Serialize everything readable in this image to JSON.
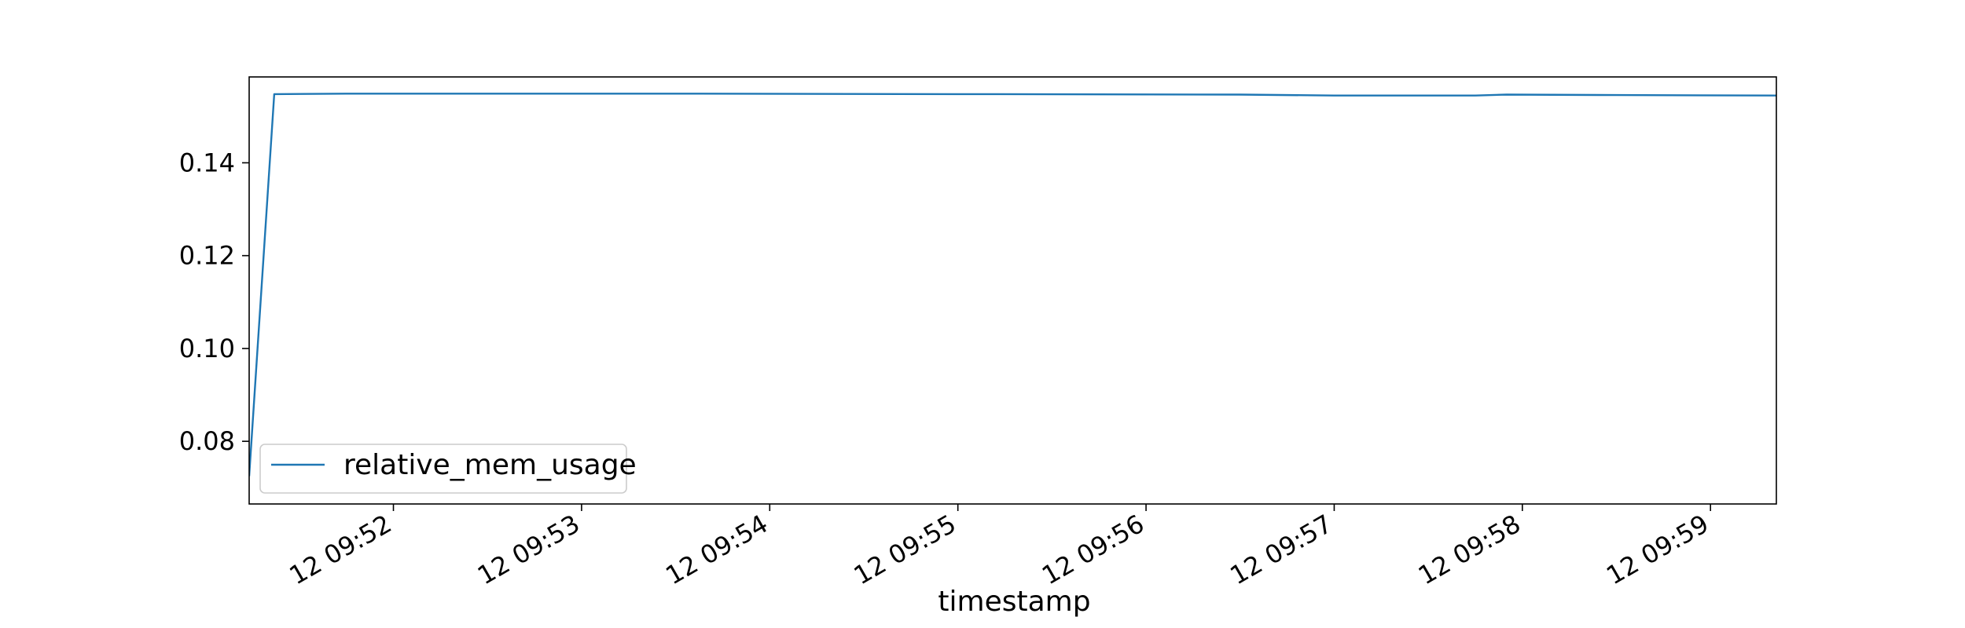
{
  "chart_data": {
    "type": "line",
    "title": "",
    "xlabel": "timestamp",
    "ylabel": "",
    "grid": false,
    "legend_position": "lower-left",
    "x_ticks": [
      {
        "time": "09:52:00",
        "label": "12 09:52"
      },
      {
        "time": "09:53:00",
        "label": "12 09:53"
      },
      {
        "time": "09:54:00",
        "label": "12 09:54"
      },
      {
        "time": "09:55:00",
        "label": "12 09:55"
      },
      {
        "time": "09:56:00",
        "label": "12 09:56"
      },
      {
        "time": "09:57:00",
        "label": "12 09:57"
      },
      {
        "time": "09:58:00",
        "label": "12 09:58"
      },
      {
        "time": "09:59:00",
        "label": "12 09:59"
      }
    ],
    "y_ticks": [
      {
        "value": 0.08,
        "label": "0.08"
      },
      {
        "value": 0.1,
        "label": "0.10"
      },
      {
        "value": 0.12,
        "label": "0.12"
      },
      {
        "value": 0.14,
        "label": "0.14"
      }
    ],
    "xlim": [
      "09:51:14",
      "09:59:21"
    ],
    "ylim": [
      0.0665,
      0.1585
    ],
    "series": [
      {
        "name": "relative_mem_usage",
        "color": "#1f77b4",
        "points": [
          {
            "x": "09:51:14",
            "y": 0.0725
          },
          {
            "x": "09:51:22",
            "y": 0.1548
          },
          {
            "x": "09:51:45",
            "y": 0.1549
          },
          {
            "x": "09:53:30",
            "y": 0.1549
          },
          {
            "x": "09:55:00",
            "y": 0.1548
          },
          {
            "x": "09:56:30",
            "y": 0.1547
          },
          {
            "x": "09:57:00",
            "y": 0.1545
          },
          {
            "x": "09:57:45",
            "y": 0.1545
          },
          {
            "x": "09:57:55",
            "y": 0.1547
          },
          {
            "x": "09:58:30",
            "y": 0.1546
          },
          {
            "x": "09:59:21",
            "y": 0.1545
          }
        ]
      }
    ]
  }
}
